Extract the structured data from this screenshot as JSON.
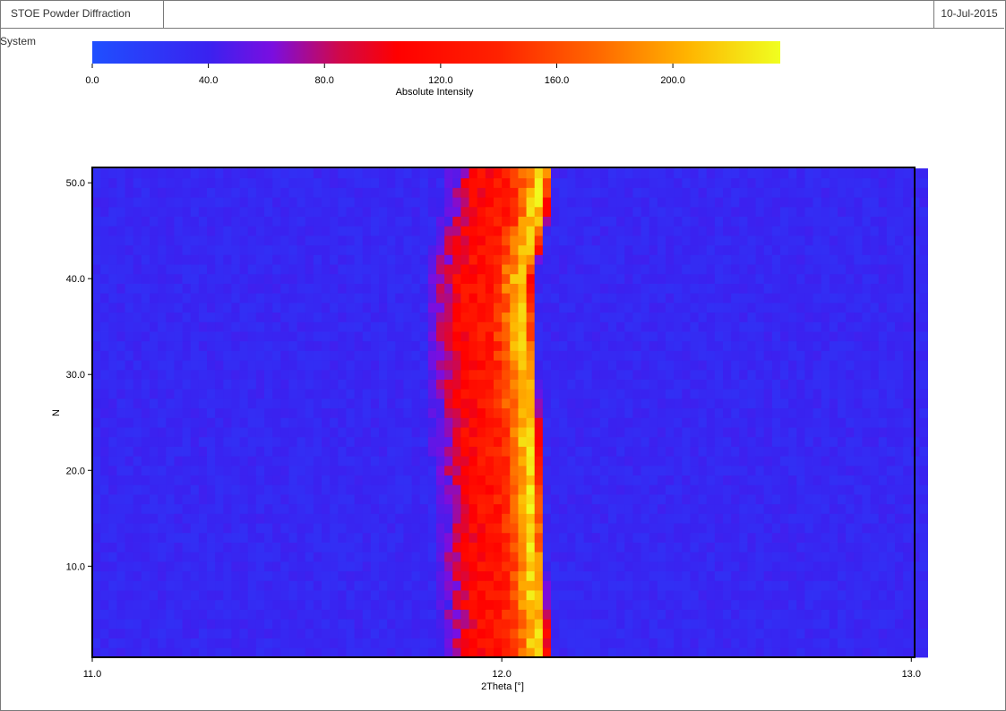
{
  "header": {
    "app_title": "STOE Powder Diffraction System",
    "date": "10-Jul-2015"
  },
  "colorbar": {
    "label": "Absolute Intensity",
    "ticks": [
      "0.0",
      "40.0",
      "80.0",
      "120.0",
      "160.0",
      "200.0"
    ],
    "tick_values": [
      0,
      40,
      80,
      120,
      160,
      200
    ],
    "range": [
      0,
      237
    ],
    "stops": [
      {
        "v": 0,
        "color": "#1f4fff"
      },
      {
        "v": 40,
        "color": "#3a22f0"
      },
      {
        "v": 62,
        "color": "#7a0ee0"
      },
      {
        "v": 85,
        "color": "#d0084a"
      },
      {
        "v": 105,
        "color": "#ff0000"
      },
      {
        "v": 140,
        "color": "#ff2200"
      },
      {
        "v": 175,
        "color": "#ff6a00"
      },
      {
        "v": 205,
        "color": "#ffb400"
      },
      {
        "v": 237,
        "color": "#f0ff20"
      }
    ]
  },
  "chart_data": {
    "type": "heatmap",
    "xlabel": "2Theta [°]",
    "ylabel": "N",
    "xlim": [
      11.0,
      13.03
    ],
    "ylim": [
      0.5,
      51.6
    ],
    "x_ticks": [
      "11.0",
      "12.0",
      "13.0"
    ],
    "x_tick_values": [
      11.0,
      12.0,
      13.0
    ],
    "y_ticks": [
      "10.0",
      "20.0",
      "30.0",
      "40.0",
      "50.0"
    ],
    "y_tick_values": [
      10,
      20,
      30,
      40,
      50
    ],
    "x_step": 0.02,
    "n_rows": 51,
    "background_intensity": 35,
    "peak_max_intensity": 235,
    "peak_profile_dx": [
      -0.2,
      -0.16,
      -0.13,
      -0.1,
      -0.07,
      -0.04,
      -0.02,
      0.0,
      0.02,
      0.04,
      0.055,
      0.07
    ],
    "peak_profile_intensity": [
      45,
      70,
      100,
      115,
      122,
      130,
      150,
      175,
      205,
      225,
      165,
      40
    ],
    "peak_center_by_N": [
      {
        "N": 1,
        "x": 12.05
      },
      {
        "N": 10,
        "x": 12.04
      },
      {
        "N": 20,
        "x": 12.03
      },
      {
        "N": 30,
        "x": 12.02
      },
      {
        "N": 40,
        "x": 12.01
      },
      {
        "N": 45,
        "x": 12.04
      },
      {
        "N": 51,
        "x": 12.06
      }
    ]
  }
}
